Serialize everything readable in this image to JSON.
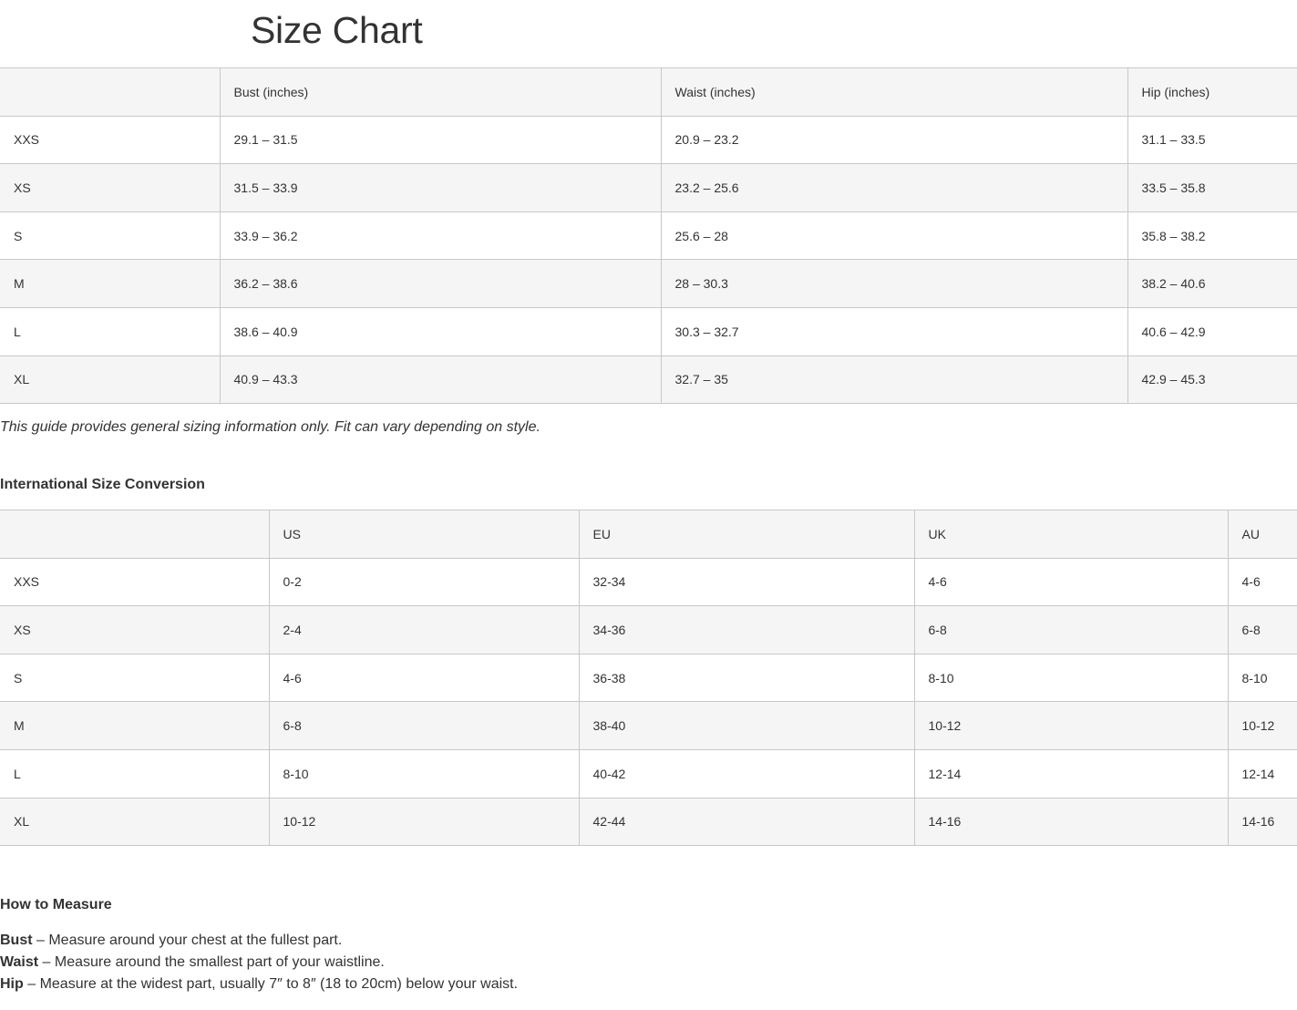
{
  "title": "Size Chart",
  "size_table": {
    "headers": [
      "",
      "Bust (inches)",
      "Waist (inches)",
      "Hip (inches)"
    ],
    "rows": [
      [
        "XXS",
        "29.1 – 31.5",
        "20.9 – 23.2",
        "31.1 – 33.5"
      ],
      [
        "XS",
        "31.5 – 33.9",
        "23.2 – 25.6",
        "33.5 – 35.8"
      ],
      [
        "S",
        "33.9 – 36.2",
        "25.6 – 28",
        "35.8 – 38.2"
      ],
      [
        "M",
        "36.2 – 38.6",
        "28 – 30.3",
        "38.2 – 40.6"
      ],
      [
        "L",
        "38.6 – 40.9",
        "30.3 – 32.7",
        "40.6 – 42.9"
      ],
      [
        "XL",
        "40.9 – 43.3",
        "32.7 – 35",
        "42.9 – 45.3"
      ]
    ]
  },
  "note": "This guide provides general sizing information only. Fit can vary depending on style.",
  "conversion": {
    "heading": "International Size Conversion",
    "headers": [
      "",
      "US",
      "EU",
      "UK",
      "AU"
    ],
    "rows": [
      [
        "XXS",
        "0-2",
        "32-34",
        "4-6",
        "4-6"
      ],
      [
        "XS",
        "2-4",
        "34-36",
        "6-8",
        "6-8"
      ],
      [
        "S",
        "4-6",
        "36-38",
        "8-10",
        "8-10"
      ],
      [
        "M",
        "6-8",
        "38-40",
        "10-12",
        "10-12"
      ],
      [
        "L",
        "8-10",
        "40-42",
        "12-14",
        "12-14"
      ],
      [
        "XL",
        "10-12",
        "42-44",
        "14-16",
        "14-16"
      ]
    ]
  },
  "measure": {
    "heading": "How to Measure",
    "items": [
      {
        "term": "Bust",
        "text": " – Measure around your chest at the fullest part."
      },
      {
        "term": "Waist",
        "text": " – Measure around the smallest part of your waistline."
      },
      {
        "term": "Hip",
        "text": " – Measure at the widest part, usually 7″ to 8″ (18 to 20cm) below your waist."
      }
    ]
  }
}
